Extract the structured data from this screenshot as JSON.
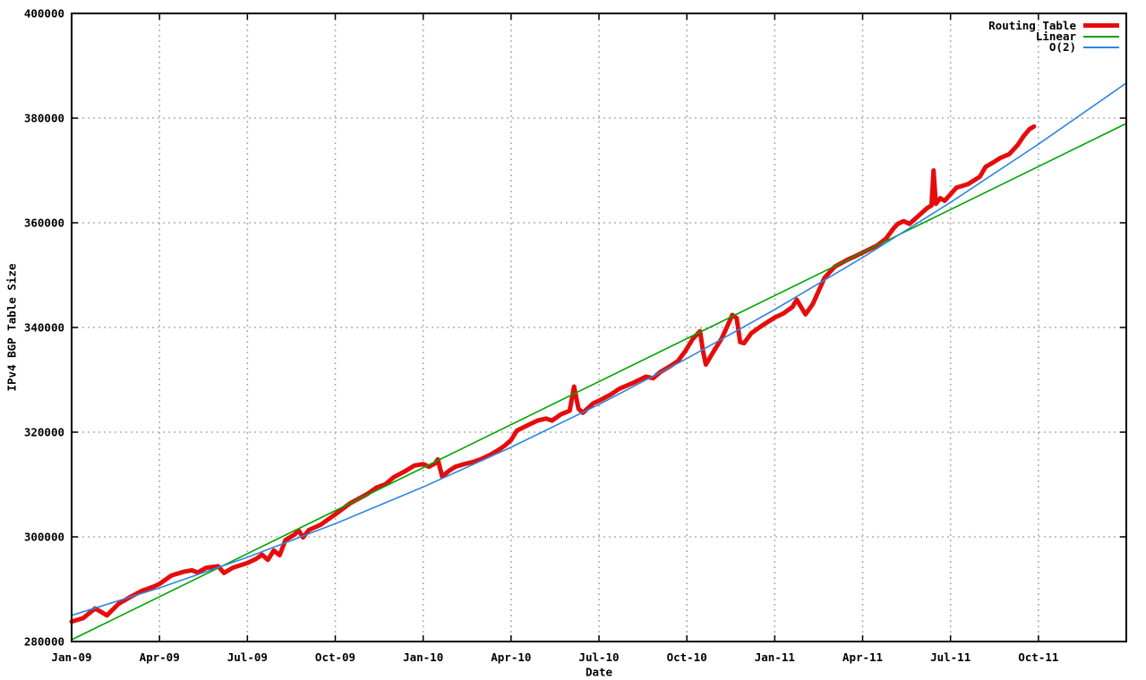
{
  "chart_data": {
    "type": "line",
    "title": "",
    "xlabel": "Date",
    "ylabel": "IPv4 BGP Table Size",
    "grid": true,
    "legend_position": "top-right-inside",
    "background_color": "#ffffff",
    "grid_color": "#b0b0b0",
    "x_range_months": [
      0,
      36
    ],
    "x_tick_month_offsets": [
      0,
      3,
      6,
      9,
      12,
      15,
      18,
      21,
      24,
      27,
      30,
      33
    ],
    "x_tick_labels": [
      "Jan-09",
      "Apr-09",
      "Jul-09",
      "Oct-09",
      "Jan-10",
      "Apr-10",
      "Jul-10",
      "Oct-10",
      "Jan-11",
      "Apr-11",
      "Jul-11",
      "Oct-11"
    ],
    "ylim": [
      280000,
      400000
    ],
    "y_ticks": [
      280000,
      300000,
      320000,
      340000,
      360000,
      380000,
      400000
    ],
    "series": [
      {
        "name": "Routing Table",
        "color": "#e60c0c",
        "width": 5,
        "points": [
          [
            0,
            283800
          ],
          [
            0.4,
            284500
          ],
          [
            0.8,
            286300
          ],
          [
            1.0,
            285700
          ],
          [
            1.2,
            285000
          ],
          [
            1.6,
            287200
          ],
          [
            2.0,
            288500
          ],
          [
            2.4,
            289700
          ],
          [
            2.8,
            290500
          ],
          [
            3.0,
            291000
          ],
          [
            3.4,
            292600
          ],
          [
            3.8,
            293300
          ],
          [
            4.1,
            293600
          ],
          [
            4.3,
            293200
          ],
          [
            4.6,
            294100
          ],
          [
            5.0,
            294400
          ],
          [
            5.2,
            293100
          ],
          [
            5.5,
            294100
          ],
          [
            6.0,
            295000
          ],
          [
            6.3,
            295800
          ],
          [
            6.5,
            296600
          ],
          [
            6.7,
            295600
          ],
          [
            6.9,
            297400
          ],
          [
            7.1,
            296500
          ],
          [
            7.3,
            299400
          ],
          [
            7.6,
            300400
          ],
          [
            7.75,
            301200
          ],
          [
            7.9,
            299900
          ],
          [
            8.1,
            301300
          ],
          [
            8.5,
            302300
          ],
          [
            9.0,
            304300
          ],
          [
            9.5,
            306400
          ],
          [
            9.8,
            307300
          ],
          [
            10.1,
            308200
          ],
          [
            10.4,
            309400
          ],
          [
            10.7,
            310000
          ],
          [
            11.0,
            311400
          ],
          [
            11.4,
            312600
          ],
          [
            11.7,
            313600
          ],
          [
            12.0,
            313900
          ],
          [
            12.2,
            313400
          ],
          [
            12.4,
            314000
          ],
          [
            12.5,
            314800
          ],
          [
            12.65,
            311500
          ],
          [
            12.9,
            312700
          ],
          [
            13.1,
            313400
          ],
          [
            13.4,
            313900
          ],
          [
            13.7,
            314300
          ],
          [
            14.0,
            314900
          ],
          [
            14.3,
            315700
          ],
          [
            14.6,
            316700
          ],
          [
            14.8,
            317500
          ],
          [
            15.0,
            318500
          ],
          [
            15.2,
            320300
          ],
          [
            15.6,
            321400
          ],
          [
            15.9,
            322200
          ],
          [
            16.2,
            322600
          ],
          [
            16.4,
            322200
          ],
          [
            16.7,
            323400
          ],
          [
            17.0,
            324100
          ],
          [
            17.15,
            328700
          ],
          [
            17.3,
            324500
          ],
          [
            17.45,
            323700
          ],
          [
            17.8,
            325500
          ],
          [
            18.0,
            326000
          ],
          [
            18.4,
            327200
          ],
          [
            18.7,
            328300
          ],
          [
            19.2,
            329500
          ],
          [
            19.6,
            330600
          ],
          [
            19.85,
            330300
          ],
          [
            20.1,
            331500
          ],
          [
            20.4,
            332500
          ],
          [
            20.7,
            333600
          ],
          [
            20.95,
            335500
          ],
          [
            21.2,
            337800
          ],
          [
            21.45,
            339300
          ],
          [
            21.55,
            335500
          ],
          [
            21.65,
            332900
          ],
          [
            21.9,
            335300
          ],
          [
            22.2,
            338000
          ],
          [
            22.4,
            340500
          ],
          [
            22.55,
            342400
          ],
          [
            22.7,
            341800
          ],
          [
            22.82,
            337200
          ],
          [
            22.95,
            337000
          ],
          [
            23.2,
            338900
          ],
          [
            23.5,
            340100
          ],
          [
            23.8,
            341200
          ],
          [
            24.0,
            341900
          ],
          [
            24.3,
            342700
          ],
          [
            24.6,
            343900
          ],
          [
            24.75,
            345300
          ],
          [
            25.05,
            342500
          ],
          [
            25.3,
            344500
          ],
          [
            25.5,
            347000
          ],
          [
            25.7,
            349500
          ],
          [
            26.05,
            351600
          ],
          [
            26.5,
            353000
          ],
          [
            26.75,
            353600
          ],
          [
            27.0,
            354300
          ],
          [
            27.5,
            355700
          ],
          [
            27.8,
            357000
          ],
          [
            28.05,
            358900
          ],
          [
            28.2,
            359800
          ],
          [
            28.4,
            360300
          ],
          [
            28.6,
            359800
          ],
          [
            28.9,
            361300
          ],
          [
            29.2,
            362800
          ],
          [
            29.35,
            363300
          ],
          [
            29.42,
            370000
          ],
          [
            29.5,
            363600
          ],
          [
            29.65,
            364700
          ],
          [
            29.8,
            364200
          ],
          [
            30.2,
            366700
          ],
          [
            30.6,
            367400
          ],
          [
            31.0,
            368800
          ],
          [
            31.2,
            370700
          ],
          [
            31.45,
            371500
          ],
          [
            31.7,
            372400
          ],
          [
            32.0,
            373100
          ],
          [
            32.3,
            374900
          ],
          [
            32.5,
            376600
          ],
          [
            32.7,
            377900
          ],
          [
            32.85,
            378400
          ]
        ]
      },
      {
        "name": "Linear",
        "color": "#00a400",
        "width": 1.6,
        "points": [
          [
            0,
            280340
          ],
          [
            36,
            378970
          ]
        ]
      },
      {
        "name": "O(2)",
        "color": "#2e86e0",
        "width": 1.6,
        "points": [
          [
            0,
            285000
          ],
          [
            3,
            290251
          ],
          [
            6,
            296089
          ],
          [
            9,
            302513
          ],
          [
            12,
            309522
          ],
          [
            15,
            317118
          ],
          [
            18,
            325300
          ],
          [
            21,
            334068
          ],
          [
            24,
            343423
          ],
          [
            27,
            353363
          ],
          [
            30,
            363889
          ],
          [
            33,
            375002
          ],
          [
            36,
            386700
          ]
        ]
      }
    ]
  }
}
